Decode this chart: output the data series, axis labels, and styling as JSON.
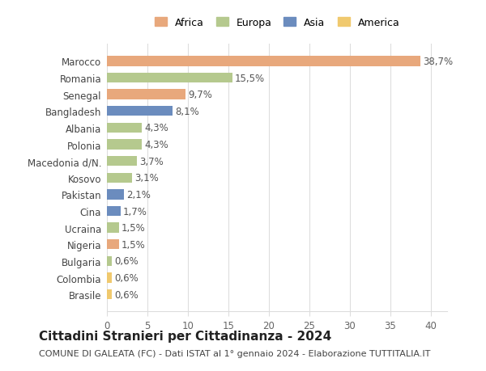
{
  "countries": [
    "Marocco",
    "Romania",
    "Senegal",
    "Bangladesh",
    "Albania",
    "Polonia",
    "Macedonia d/N.",
    "Kosovo",
    "Pakistan",
    "Cina",
    "Ucraina",
    "Nigeria",
    "Bulgaria",
    "Colombia",
    "Brasile"
  ],
  "values": [
    38.7,
    15.5,
    9.7,
    8.1,
    4.3,
    4.3,
    3.7,
    3.1,
    2.1,
    1.7,
    1.5,
    1.5,
    0.6,
    0.6,
    0.6
  ],
  "labels": [
    "38,7%",
    "15,5%",
    "9,7%",
    "8,1%",
    "4,3%",
    "4,3%",
    "3,7%",
    "3,1%",
    "2,1%",
    "1,7%",
    "1,5%",
    "1,5%",
    "0,6%",
    "0,6%",
    "0,6%"
  ],
  "continents": [
    "Africa",
    "Europa",
    "Africa",
    "Asia",
    "Europa",
    "Europa",
    "Europa",
    "Europa",
    "Asia",
    "Asia",
    "Europa",
    "Africa",
    "Europa",
    "America",
    "America"
  ],
  "colors": {
    "Africa": "#E8A87C",
    "Europa": "#B5C98E",
    "Asia": "#6B8CBE",
    "America": "#F0C96E"
  },
  "legend_order": [
    "Africa",
    "Europa",
    "Asia",
    "America"
  ],
  "xlim": [
    0,
    42
  ],
  "xticks": [
    0,
    5,
    10,
    15,
    20,
    25,
    30,
    35,
    40
  ],
  "title": "Cittadini Stranieri per Cittadinanza - 2024",
  "subtitle": "COMUNE DI GALEATA (FC) - Dati ISTAT al 1° gennaio 2024 - Elaborazione TUTTITALIA.IT",
  "bg_color": "#ffffff",
  "grid_color": "#dddddd",
  "bar_height": 0.6,
  "title_fontsize": 11,
  "subtitle_fontsize": 8,
  "label_fontsize": 8.5,
  "tick_fontsize": 8.5,
  "legend_fontsize": 9
}
